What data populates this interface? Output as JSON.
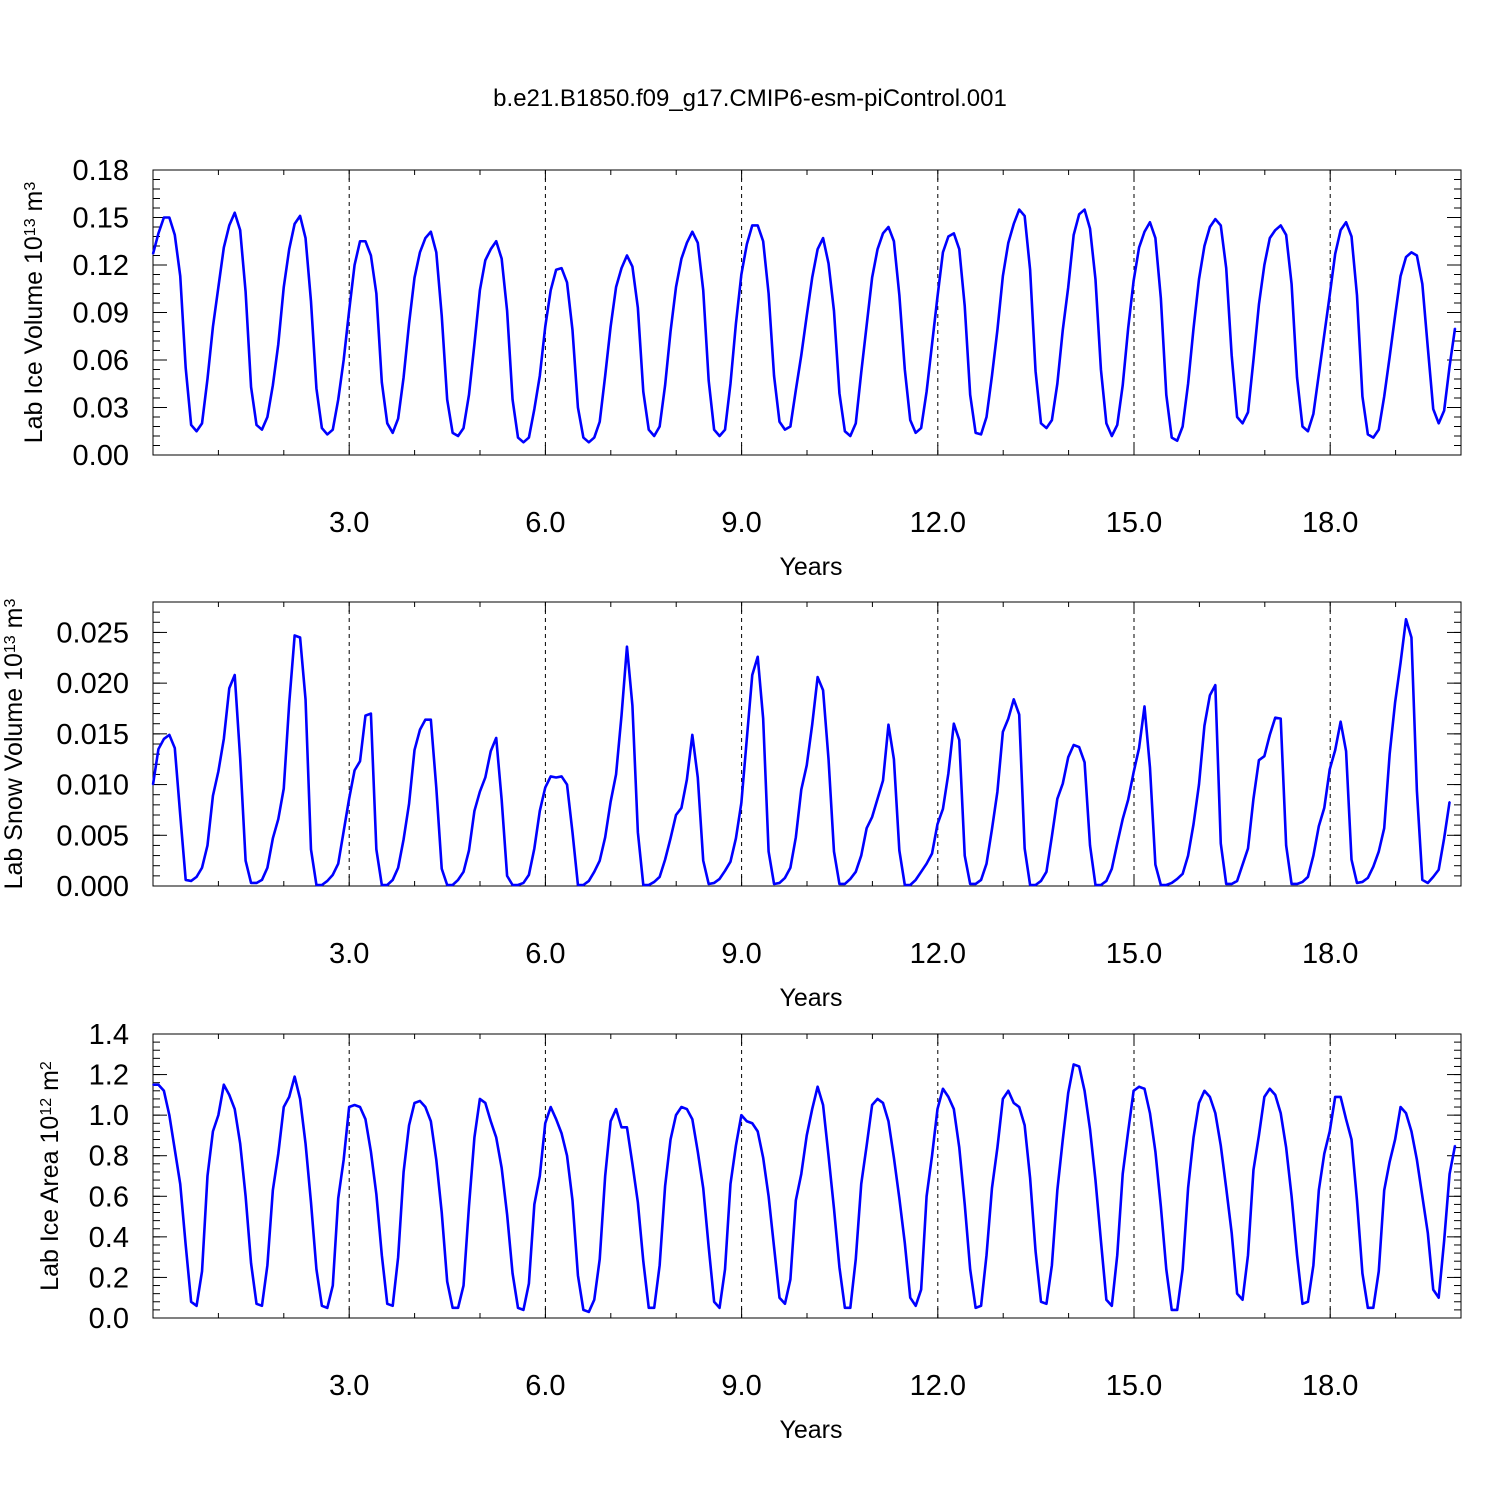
{
  "title": "b.e21.B1850.f09_g17.CMIP6-esm-piControl.001",
  "series_color": "#0000ff",
  "chart_data": [
    {
      "type": "line",
      "name": "ice-volume",
      "title": "",
      "xlabel": "Years",
      "ylabel": "Lab Ice Volume 10",
      "ylabel_sup": "13",
      "ylabel_unit": " m",
      "ylabel_unit_sup": "3",
      "xlim": [
        0.0,
        20.0
      ],
      "ylim": [
        0.0,
        0.18
      ],
      "x_ticks": [
        "3.0",
        "6.0",
        "9.0",
        "12.0",
        "15.0",
        "18.0"
      ],
      "y_ticks": [
        "0.00",
        "0.03",
        "0.06",
        "0.09",
        "0.12",
        "0.15",
        "0.18"
      ],
      "grid": "vertical dashed at major x ticks",
      "x_start": 0.0,
      "x_step": 0.0833,
      "values": [
        0.127,
        0.14,
        0.15,
        0.15,
        0.139,
        0.113,
        0.055,
        0.019,
        0.015,
        0.02,
        0.048,
        0.081,
        0.106,
        0.131,
        0.145,
        0.153,
        0.142,
        0.103,
        0.043,
        0.019,
        0.016,
        0.024,
        0.044,
        0.07,
        0.106,
        0.13,
        0.146,
        0.151,
        0.137,
        0.097,
        0.042,
        0.017,
        0.013,
        0.016,
        0.035,
        0.06,
        0.091,
        0.12,
        0.135,
        0.135,
        0.126,
        0.102,
        0.046,
        0.02,
        0.014,
        0.023,
        0.049,
        0.083,
        0.112,
        0.128,
        0.137,
        0.141,
        0.128,
        0.088,
        0.035,
        0.014,
        0.012,
        0.017,
        0.038,
        0.07,
        0.104,
        0.123,
        0.13,
        0.135,
        0.124,
        0.091,
        0.035,
        0.011,
        0.008,
        0.011,
        0.029,
        0.05,
        0.081,
        0.104,
        0.117,
        0.118,
        0.109,
        0.079,
        0.03,
        0.011,
        0.008,
        0.011,
        0.021,
        0.05,
        0.081,
        0.106,
        0.118,
        0.126,
        0.119,
        0.093,
        0.04,
        0.016,
        0.012,
        0.018,
        0.044,
        0.078,
        0.106,
        0.124,
        0.134,
        0.141,
        0.134,
        0.104,
        0.047,
        0.016,
        0.012,
        0.016,
        0.045,
        0.083,
        0.114,
        0.133,
        0.145,
        0.145,
        0.135,
        0.102,
        0.05,
        0.021,
        0.016,
        0.018,
        0.041,
        0.063,
        0.088,
        0.112,
        0.13,
        0.137,
        0.121,
        0.091,
        0.039,
        0.015,
        0.012,
        0.02,
        0.052,
        0.082,
        0.112,
        0.13,
        0.14,
        0.144,
        0.135,
        0.101,
        0.054,
        0.022,
        0.014,
        0.017,
        0.04,
        0.07,
        0.1,
        0.128,
        0.138,
        0.14,
        0.13,
        0.094,
        0.038,
        0.014,
        0.013,
        0.024,
        0.05,
        0.079,
        0.113,
        0.134,
        0.146,
        0.155,
        0.151,
        0.117,
        0.053,
        0.02,
        0.017,
        0.022,
        0.045,
        0.079,
        0.106,
        0.139,
        0.152,
        0.155,
        0.143,
        0.111,
        0.054,
        0.02,
        0.012,
        0.019,
        0.044,
        0.08,
        0.11,
        0.131,
        0.141,
        0.147,
        0.137,
        0.099,
        0.038,
        0.011,
        0.009,
        0.018,
        0.045,
        0.08,
        0.111,
        0.132,
        0.144,
        0.149,
        0.145,
        0.118,
        0.063,
        0.024,
        0.02,
        0.027,
        0.06,
        0.095,
        0.12,
        0.137,
        0.142,
        0.145,
        0.139,
        0.108,
        0.049,
        0.018,
        0.015,
        0.026,
        0.051,
        0.076,
        0.101,
        0.127,
        0.142,
        0.147,
        0.138,
        0.101,
        0.037,
        0.013,
        0.011,
        0.016,
        0.037,
        0.062,
        0.088,
        0.113,
        0.125,
        0.128,
        0.126,
        0.108,
        0.068,
        0.029,
        0.02,
        0.028,
        0.056,
        0.08
      ]
    },
    {
      "type": "line",
      "name": "snow-volume",
      "title": "",
      "xlabel": "Years",
      "ylabel": "Lab Snow Volume 10",
      "ylabel_sup": "13",
      "ylabel_unit": " m",
      "ylabel_unit_sup": "3",
      "xlim": [
        0.0,
        20.0
      ],
      "ylim": [
        0.0,
        0.028
      ],
      "x_ticks": [
        "3.0",
        "6.0",
        "9.0",
        "12.0",
        "15.0",
        "18.0"
      ],
      "y_ticks": [
        "0.000",
        "0.005",
        "0.010",
        "0.015",
        "0.020",
        "0.025"
      ],
      "grid": "vertical dashed at major x ticks",
      "x_start": 0.0,
      "x_step": 0.0833,
      "values": [
        0.01,
        0.0135,
        0.0145,
        0.0149,
        0.0136,
        0.007,
        0.0006,
        0.0005,
        0.0009,
        0.0018,
        0.004,
        0.0089,
        0.0113,
        0.0145,
        0.0195,
        0.0208,
        0.0126,
        0.0025,
        0.0003,
        0.0003,
        0.0006,
        0.0018,
        0.0047,
        0.0066,
        0.0096,
        0.018,
        0.0247,
        0.0245,
        0.0184,
        0.0036,
        0.0001,
        0.0001,
        0.0005,
        0.0011,
        0.0022,
        0.0054,
        0.0086,
        0.0114,
        0.0123,
        0.0168,
        0.017,
        0.0036,
        0.0001,
        0.0001,
        0.0006,
        0.0018,
        0.0046,
        0.0081,
        0.0134,
        0.0154,
        0.0164,
        0.0164,
        0.0097,
        0.0017,
        0.0001,
        0.0001,
        0.0006,
        0.0014,
        0.0035,
        0.0074,
        0.0093,
        0.0107,
        0.0133,
        0.0146,
        0.0085,
        0.001,
        0.0001,
        0.0001,
        0.0003,
        0.0011,
        0.0037,
        0.0074,
        0.0097,
        0.0108,
        0.0107,
        0.0108,
        0.01,
        0.0053,
        0.0001,
        0.0001,
        0.0005,
        0.0014,
        0.0025,
        0.0048,
        0.0083,
        0.011,
        0.0168,
        0.0236,
        0.0178,
        0.0053,
        0.0001,
        0.0001,
        0.0004,
        0.0009,
        0.0026,
        0.0047,
        0.007,
        0.0077,
        0.0105,
        0.0149,
        0.0107,
        0.0025,
        0.0002,
        0.0003,
        0.0007,
        0.0015,
        0.0024,
        0.0047,
        0.0082,
        0.0145,
        0.0208,
        0.0226,
        0.0165,
        0.0034,
        0.0002,
        0.0003,
        0.0008,
        0.0018,
        0.0048,
        0.0095,
        0.0119,
        0.0159,
        0.0206,
        0.0193,
        0.0125,
        0.0034,
        0.0002,
        0.0002,
        0.0007,
        0.0014,
        0.003,
        0.0057,
        0.0068,
        0.0086,
        0.0104,
        0.0159,
        0.0125,
        0.0035,
        0.0001,
        0.0001,
        0.0006,
        0.0014,
        0.0022,
        0.0032,
        0.0061,
        0.0076,
        0.0111,
        0.016,
        0.0144,
        0.003,
        0.0002,
        0.0002,
        0.0006,
        0.0022,
        0.0056,
        0.0093,
        0.0152,
        0.0165,
        0.0184,
        0.0169,
        0.0037,
        0.0001,
        0.0001,
        0.0005,
        0.0014,
        0.0049,
        0.0086,
        0.0101,
        0.0127,
        0.0139,
        0.0137,
        0.0122,
        0.004,
        0.0001,
        0.0001,
        0.0005,
        0.0017,
        0.0042,
        0.0066,
        0.0085,
        0.0112,
        0.0136,
        0.0177,
        0.0117,
        0.0021,
        0.0001,
        0.0001,
        0.0003,
        0.0007,
        0.0012,
        0.003,
        0.0061,
        0.01,
        0.0158,
        0.0188,
        0.0198,
        0.0042,
        0.0002,
        0.0002,
        0.0005,
        0.0021,
        0.0037,
        0.0086,
        0.0124,
        0.0128,
        0.0149,
        0.0166,
        0.0165,
        0.004,
        0.0002,
        0.0002,
        0.0004,
        0.0009,
        0.003,
        0.0059,
        0.0077,
        0.0115,
        0.0134,
        0.0162,
        0.0133,
        0.0026,
        0.0003,
        0.0004,
        0.0008,
        0.0019,
        0.0034,
        0.0057,
        0.013,
        0.0181,
        0.022,
        0.0263,
        0.0245,
        0.0094,
        0.0006,
        0.0003,
        0.0009,
        0.0016,
        0.0047,
        0.0083
      ]
    },
    {
      "type": "line",
      "name": "ice-area",
      "title": "",
      "xlabel": "Years",
      "ylabel": "Lab Ice Area 10",
      "ylabel_sup": "12",
      "ylabel_unit": " m",
      "ylabel_unit_sup": "2",
      "xlim": [
        0.0,
        20.0
      ],
      "ylim": [
        0.0,
        1.4
      ],
      "x_ticks": [
        "3.0",
        "6.0",
        "9.0",
        "12.0",
        "15.0",
        "18.0"
      ],
      "y_ticks": [
        "0.0",
        "0.2",
        "0.4",
        "0.6",
        "0.8",
        "1.0",
        "1.2",
        "1.4"
      ],
      "grid": "vertical dashed at major x ticks",
      "x_start": 0.0,
      "x_step": 0.0833,
      "values": [
        1.15,
        1.15,
        1.12,
        1.0,
        0.83,
        0.66,
        0.36,
        0.08,
        0.06,
        0.23,
        0.7,
        0.92,
        1.0,
        1.15,
        1.1,
        1.03,
        0.86,
        0.6,
        0.27,
        0.07,
        0.06,
        0.26,
        0.63,
        0.81,
        1.04,
        1.09,
        1.19,
        1.08,
        0.86,
        0.57,
        0.24,
        0.06,
        0.05,
        0.16,
        0.59,
        0.78,
        1.04,
        1.05,
        1.04,
        0.98,
        0.82,
        0.61,
        0.31,
        0.07,
        0.06,
        0.3,
        0.72,
        0.95,
        1.06,
        1.07,
        1.04,
        0.97,
        0.78,
        0.52,
        0.18,
        0.05,
        0.05,
        0.16,
        0.55,
        0.89,
        1.08,
        1.06,
        0.97,
        0.89,
        0.74,
        0.51,
        0.22,
        0.05,
        0.04,
        0.17,
        0.56,
        0.7,
        0.96,
        1.04,
        0.98,
        0.91,
        0.8,
        0.58,
        0.21,
        0.04,
        0.03,
        0.09,
        0.29,
        0.7,
        0.97,
        1.03,
        0.94,
        0.94,
        0.76,
        0.57,
        0.28,
        0.05,
        0.05,
        0.26,
        0.65,
        0.88,
        1.0,
        1.04,
        1.03,
        0.98,
        0.82,
        0.64,
        0.35,
        0.08,
        0.05,
        0.24,
        0.66,
        0.85,
        1.0,
        0.97,
        0.96,
        0.92,
        0.79,
        0.6,
        0.35,
        0.1,
        0.07,
        0.19,
        0.58,
        0.71,
        0.9,
        1.03,
        1.14,
        1.05,
        0.8,
        0.54,
        0.25,
        0.05,
        0.05,
        0.29,
        0.66,
        0.85,
        1.05,
        1.08,
        1.06,
        0.97,
        0.79,
        0.59,
        0.37,
        0.1,
        0.06,
        0.14,
        0.6,
        0.8,
        1.03,
        1.13,
        1.09,
        1.03,
        0.84,
        0.56,
        0.24,
        0.05,
        0.06,
        0.31,
        0.64,
        0.84,
        1.08,
        1.12,
        1.06,
        1.04,
        0.95,
        0.69,
        0.33,
        0.08,
        0.07,
        0.26,
        0.63,
        0.88,
        1.11,
        1.25,
        1.24,
        1.12,
        0.93,
        0.68,
        0.38,
        0.09,
        0.06,
        0.31,
        0.71,
        0.92,
        1.12,
        1.14,
        1.13,
        1.01,
        0.82,
        0.55,
        0.24,
        0.04,
        0.04,
        0.24,
        0.64,
        0.89,
        1.06,
        1.12,
        1.09,
        1.01,
        0.85,
        0.64,
        0.42,
        0.12,
        0.09,
        0.31,
        0.73,
        0.9,
        1.09,
        1.13,
        1.1,
        1.01,
        0.84,
        0.6,
        0.31,
        0.07,
        0.08,
        0.26,
        0.63,
        0.81,
        0.92,
        1.09,
        1.09,
        0.98,
        0.88,
        0.58,
        0.22,
        0.05,
        0.05,
        0.23,
        0.63,
        0.77,
        0.88,
        1.04,
        1.01,
        0.92,
        0.78,
        0.6,
        0.42,
        0.14,
        0.1,
        0.38,
        0.71,
        0.85
      ]
    }
  ]
}
